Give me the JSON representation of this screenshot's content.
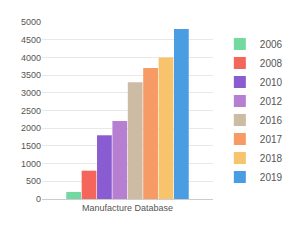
{
  "chart_data": {
    "type": "bar",
    "categories": [
      "Manufacture Database"
    ],
    "series": [
      {
        "name": "2006",
        "color": "#74d9a0",
        "values": [
          200
        ]
      },
      {
        "name": "2008",
        "color": "#f4655b",
        "values": [
          800
        ]
      },
      {
        "name": "2010",
        "color": "#8a5cd1",
        "values": [
          1800
        ]
      },
      {
        "name": "2012",
        "color": "#b77fd1",
        "values": [
          2200
        ]
      },
      {
        "name": "2016",
        "color": "#cbbca3",
        "values": [
          3300
        ]
      },
      {
        "name": "2017",
        "color": "#f69a66",
        "values": [
          3700
        ]
      },
      {
        "name": "2018",
        "color": "#f7c36d",
        "values": [
          4000
        ]
      },
      {
        "name": "2019",
        "color": "#4b9de3",
        "values": [
          4800
        ]
      }
    ],
    "ylim": [
      0,
      5000
    ],
    "yticks": [
      0,
      500,
      1000,
      1500,
      2000,
      2500,
      3000,
      3500,
      4000,
      4500,
      5000
    ],
    "grid": true,
    "legend": "right"
  }
}
